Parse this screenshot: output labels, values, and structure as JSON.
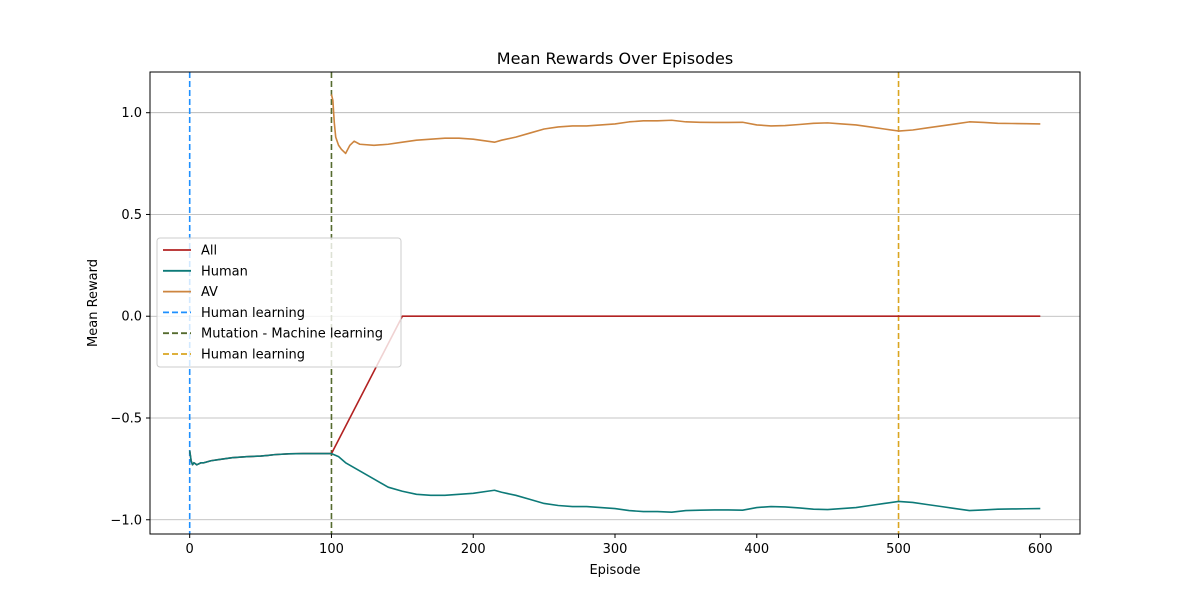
{
  "chart_data": {
    "type": "line",
    "title": "Mean Rewards Over Episodes",
    "xlabel": "Episode",
    "ylabel": "Mean Reward",
    "xlim": [
      -28,
      628
    ],
    "ylim": [
      -1.07,
      1.2
    ],
    "xticks": [
      0,
      100,
      200,
      300,
      400,
      500,
      600
    ],
    "yticks": [
      -1.0,
      -0.5,
      0.0,
      0.5,
      1.0
    ],
    "ytick_labels": [
      "−1.0",
      "−0.5",
      "0.0",
      "0.5",
      "1.0"
    ],
    "grid": "y-axis only",
    "legend_position": "center-left",
    "series": [
      {
        "name": "All",
        "color": "#b22222",
        "style": "solid",
        "x": [
          0,
          1,
          2,
          3,
          5,
          8,
          10,
          15,
          20,
          30,
          40,
          50,
          55,
          60,
          70,
          80,
          90,
          100,
          150,
          151,
          200,
          300,
          400,
          500,
          600
        ],
        "y": [
          -0.66,
          -0.71,
          -0.73,
          -0.72,
          -0.73,
          -0.72,
          -0.72,
          -0.71,
          -0.705,
          -0.695,
          -0.69,
          -0.687,
          -0.684,
          -0.68,
          -0.676,
          -0.675,
          -0.675,
          -0.675,
          0.0,
          0.0,
          0.0,
          0.0,
          0.0,
          0.0,
          0.0
        ]
      },
      {
        "name": "Human",
        "color": "#0d7a78",
        "style": "solid",
        "x": [
          0,
          1,
          2,
          3,
          5,
          8,
          10,
          15,
          20,
          30,
          40,
          50,
          55,
          60,
          70,
          80,
          90,
          100,
          105,
          110,
          120,
          130,
          140,
          150,
          160,
          170,
          180,
          190,
          200,
          210,
          215,
          220,
          230,
          240,
          250,
          260,
          270,
          280,
          290,
          300,
          310,
          320,
          330,
          340,
          350,
          360,
          370,
          380,
          390,
          400,
          410,
          420,
          430,
          440,
          450,
          460,
          470,
          480,
          490,
          500,
          510,
          520,
          530,
          540,
          550,
          560,
          570,
          580,
          590,
          600
        ],
        "y": [
          -0.66,
          -0.71,
          -0.73,
          -0.72,
          -0.73,
          -0.72,
          -0.72,
          -0.71,
          -0.705,
          -0.695,
          -0.69,
          -0.687,
          -0.684,
          -0.68,
          -0.676,
          -0.675,
          -0.675,
          -0.675,
          -0.69,
          -0.72,
          -0.76,
          -0.8,
          -0.84,
          -0.86,
          -0.875,
          -0.88,
          -0.88,
          -0.875,
          -0.87,
          -0.86,
          -0.855,
          -0.865,
          -0.88,
          -0.9,
          -0.92,
          -0.93,
          -0.935,
          -0.935,
          -0.94,
          -0.945,
          -0.955,
          -0.96,
          -0.96,
          -0.963,
          -0.955,
          -0.953,
          -0.952,
          -0.952,
          -0.953,
          -0.94,
          -0.935,
          -0.937,
          -0.942,
          -0.948,
          -0.95,
          -0.945,
          -0.94,
          -0.93,
          -0.92,
          -0.91,
          -0.915,
          -0.925,
          -0.935,
          -0.945,
          -0.955,
          -0.952,
          -0.948,
          -0.947,
          -0.946,
          -0.945
        ]
      },
      {
        "name": "AV",
        "color": "#cd853f",
        "style": "solid",
        "x": [
          100,
          101,
          102,
          103,
          105,
          107,
          110,
          113,
          116,
          120,
          130,
          140,
          150,
          160,
          170,
          180,
          190,
          200,
          210,
          215,
          220,
          230,
          240,
          250,
          260,
          270,
          280,
          290,
          300,
          310,
          320,
          330,
          340,
          350,
          360,
          370,
          380,
          390,
          400,
          410,
          420,
          430,
          440,
          450,
          460,
          470,
          480,
          490,
          500,
          510,
          520,
          530,
          540,
          550,
          560,
          570,
          580,
          590,
          600
        ],
        "y": [
          1.09,
          1.06,
          0.95,
          0.88,
          0.84,
          0.82,
          0.8,
          0.84,
          0.86,
          0.845,
          0.84,
          0.845,
          0.855,
          0.865,
          0.87,
          0.875,
          0.875,
          0.87,
          0.86,
          0.855,
          0.865,
          0.88,
          0.9,
          0.92,
          0.93,
          0.935,
          0.935,
          0.94,
          0.945,
          0.955,
          0.96,
          0.96,
          0.963,
          0.955,
          0.953,
          0.952,
          0.952,
          0.953,
          0.94,
          0.935,
          0.937,
          0.942,
          0.948,
          0.95,
          0.945,
          0.94,
          0.93,
          0.92,
          0.91,
          0.915,
          0.925,
          0.935,
          0.945,
          0.955,
          0.952,
          0.948,
          0.947,
          0.946,
          0.945
        ]
      }
    ],
    "vlines": [
      {
        "name": "Human learning",
        "x": 0,
        "color": "#1e90ff",
        "style": "dashed"
      },
      {
        "name": "Mutation - Machine learning",
        "x": 100,
        "color": "#556b2f",
        "style": "dashed"
      },
      {
        "name": "Human learning",
        "x": 500,
        "color": "#daa520",
        "style": "dashed"
      }
    ]
  }
}
